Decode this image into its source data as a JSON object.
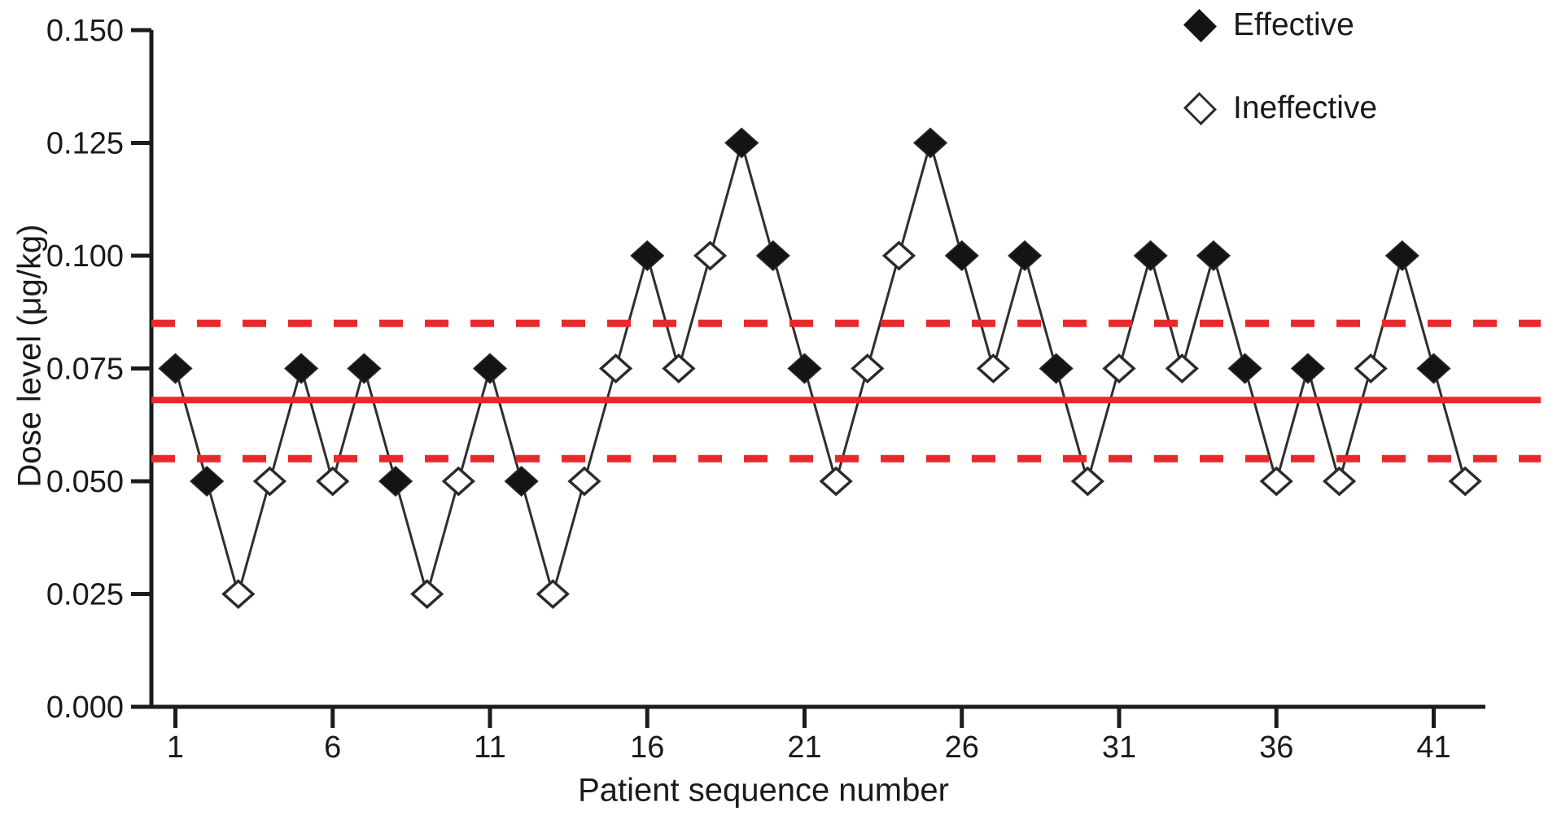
{
  "figure": {
    "legend": [
      {
        "label": "Effective",
        "marker": "filled-diamond"
      },
      {
        "label": "Ineffective",
        "marker": "open-diamond"
      }
    ],
    "colors": {
      "reference_red": "#e9282b",
      "marker_black": "#141414",
      "marker_stroke": "#2b2b2b",
      "series_line": "#2e2e2e",
      "axis": "#1c1c1c",
      "text": "#1a1a1a"
    }
  },
  "chart_data": {
    "type": "line",
    "title": "",
    "xlabel": "Patient sequence number",
    "ylabel": "Dose level (μg/kg)",
    "xlim": [
      0,
      43
    ],
    "ylim": [
      0,
      0.15
    ],
    "xticks": [
      1,
      6,
      11,
      16,
      21,
      26,
      31,
      36,
      41
    ],
    "ytick_labels": [
      "0.000",
      "0.025",
      "0.050",
      "0.075",
      "0.100",
      "0.125",
      "0.150"
    ],
    "grid": false,
    "legend_position": "top-right",
    "reference_lines": {
      "solid_mean": 0.068,
      "dashed_upper": 0.085,
      "dashed_lower": 0.055
    },
    "points": [
      {
        "patient": 1,
        "dose": 0.075,
        "response": "effective"
      },
      {
        "patient": 2,
        "dose": 0.05,
        "response": "effective"
      },
      {
        "patient": 3,
        "dose": 0.025,
        "response": "ineffective"
      },
      {
        "patient": 4,
        "dose": 0.05,
        "response": "ineffective"
      },
      {
        "patient": 5,
        "dose": 0.075,
        "response": "effective"
      },
      {
        "patient": 6,
        "dose": 0.05,
        "response": "ineffective"
      },
      {
        "patient": 7,
        "dose": 0.075,
        "response": "effective"
      },
      {
        "patient": 8,
        "dose": 0.05,
        "response": "effective"
      },
      {
        "patient": 9,
        "dose": 0.025,
        "response": "ineffective"
      },
      {
        "patient": 10,
        "dose": 0.05,
        "response": "ineffective"
      },
      {
        "patient": 11,
        "dose": 0.075,
        "response": "effective"
      },
      {
        "patient": 12,
        "dose": 0.05,
        "response": "effective"
      },
      {
        "patient": 13,
        "dose": 0.025,
        "response": "ineffective"
      },
      {
        "patient": 14,
        "dose": 0.05,
        "response": "ineffective"
      },
      {
        "patient": 15,
        "dose": 0.075,
        "response": "ineffective"
      },
      {
        "patient": 16,
        "dose": 0.1,
        "response": "effective"
      },
      {
        "patient": 17,
        "dose": 0.075,
        "response": "ineffective"
      },
      {
        "patient": 18,
        "dose": 0.1,
        "response": "ineffective"
      },
      {
        "patient": 19,
        "dose": 0.125,
        "response": "effective"
      },
      {
        "patient": 20,
        "dose": 0.1,
        "response": "effective"
      },
      {
        "patient": 21,
        "dose": 0.075,
        "response": "effective"
      },
      {
        "patient": 22,
        "dose": 0.05,
        "response": "ineffective"
      },
      {
        "patient": 23,
        "dose": 0.075,
        "response": "ineffective"
      },
      {
        "patient": 24,
        "dose": 0.1,
        "response": "ineffective"
      },
      {
        "patient": 25,
        "dose": 0.125,
        "response": "effective"
      },
      {
        "patient": 26,
        "dose": 0.1,
        "response": "effective"
      },
      {
        "patient": 27,
        "dose": 0.075,
        "response": "ineffective"
      },
      {
        "patient": 28,
        "dose": 0.1,
        "response": "effective"
      },
      {
        "patient": 29,
        "dose": 0.075,
        "response": "effective"
      },
      {
        "patient": 30,
        "dose": 0.05,
        "response": "ineffective"
      },
      {
        "patient": 31,
        "dose": 0.075,
        "response": "ineffective"
      },
      {
        "patient": 32,
        "dose": 0.1,
        "response": "effective"
      },
      {
        "patient": 33,
        "dose": 0.075,
        "response": "ineffective"
      },
      {
        "patient": 34,
        "dose": 0.1,
        "response": "effective"
      },
      {
        "patient": 35,
        "dose": 0.075,
        "response": "effective"
      },
      {
        "patient": 36,
        "dose": 0.05,
        "response": "ineffective"
      },
      {
        "patient": 37,
        "dose": 0.075,
        "response": "effective"
      },
      {
        "patient": 38,
        "dose": 0.05,
        "response": "ineffective"
      },
      {
        "patient": 39,
        "dose": 0.075,
        "response": "ineffective"
      },
      {
        "patient": 40,
        "dose": 0.1,
        "response": "effective"
      },
      {
        "patient": 41,
        "dose": 0.075,
        "response": "effective"
      },
      {
        "patient": 42,
        "dose": 0.05,
        "response": "ineffective"
      }
    ]
  }
}
